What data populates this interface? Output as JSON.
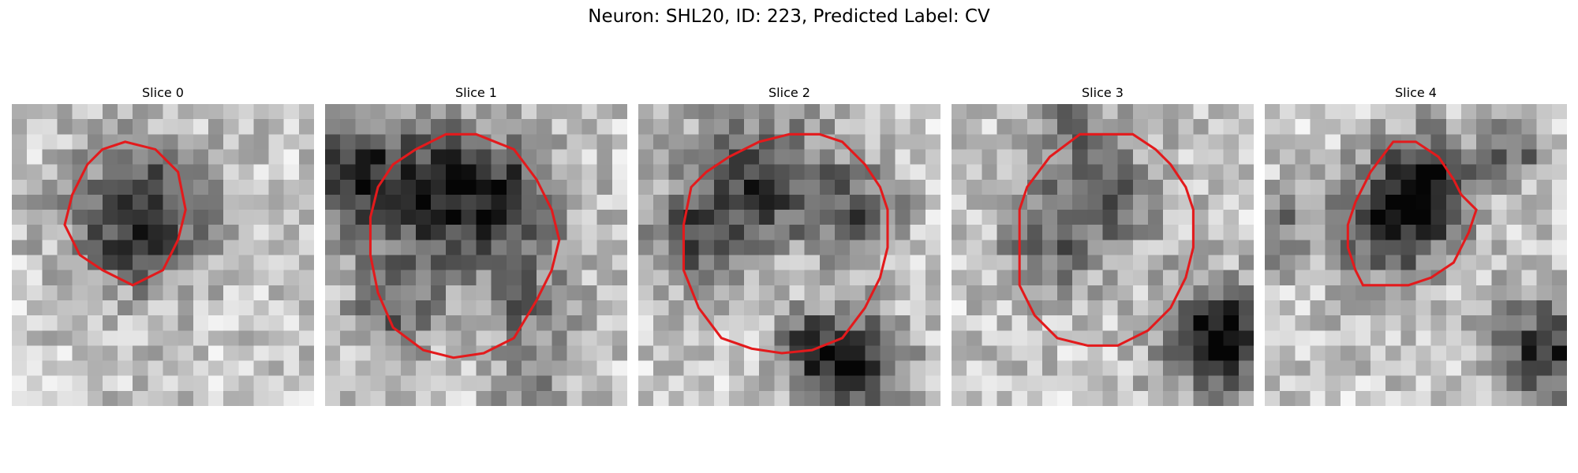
{
  "figure": {
    "title": "Neuron: SHL20, ID: 223, Predicted Label: CV",
    "contour_color": "#e31a1c",
    "panels": [
      {
        "title": "Slice 0",
        "seed": 11,
        "contour": [
          [
            7.5,
            2.5
          ],
          [
            9.5,
            3.0
          ],
          [
            11.0,
            4.5
          ],
          [
            11.5,
            7.0
          ],
          [
            11.0,
            9.0
          ],
          [
            10.0,
            11.0
          ],
          [
            8.0,
            12.0
          ],
          [
            6.0,
            11.0
          ],
          [
            4.5,
            10.0
          ],
          [
            3.5,
            8.0
          ],
          [
            4.0,
            6.0
          ],
          [
            5.0,
            4.0
          ],
          [
            6.0,
            3.0
          ]
        ],
        "dark_blobs": [
          {
            "cx": 8.5,
            "cy": 7.5,
            "r": 4.5,
            "s": 0.65
          }
        ]
      },
      {
        "title": "Slice 1",
        "seed": 23,
        "contour": [
          [
            6.0,
            3.0
          ],
          [
            8.0,
            2.0
          ],
          [
            10.0,
            2.0
          ],
          [
            12.5,
            3.0
          ],
          [
            14.0,
            5.0
          ],
          [
            15.0,
            7.0
          ],
          [
            15.5,
            9.0
          ],
          [
            15.0,
            11.0
          ],
          [
            14.0,
            13.0
          ],
          [
            12.5,
            15.5
          ],
          [
            10.5,
            16.5
          ],
          [
            8.5,
            16.8
          ],
          [
            6.5,
            16.3
          ],
          [
            4.5,
            14.8
          ],
          [
            3.5,
            12.5
          ],
          [
            3.0,
            10.0
          ],
          [
            3.0,
            7.5
          ],
          [
            3.5,
            5.5
          ],
          [
            4.5,
            4.0
          ]
        ],
        "dark_blobs": [
          {
            "cx": 7.0,
            "cy": 6.0,
            "r": 5.0,
            "s": 0.6
          },
          {
            "cx": 1.5,
            "cy": 4.5,
            "r": 3.5,
            "s": 0.4
          },
          {
            "cx": 12.5,
            "cy": 6.5,
            "r": 3.5,
            "s": 0.45
          },
          {
            "cx": 4.5,
            "cy": 13.5,
            "r": 3.0,
            "s": 0.35
          },
          {
            "cx": 13.5,
            "cy": 13.5,
            "r": 3.0,
            "s": 0.35
          },
          {
            "cx": 13.5,
            "cy": 19.0,
            "r": 2.0,
            "s": 0.35
          }
        ]
      },
      {
        "title": "Slice 2",
        "seed": 37,
        "contour": [
          [
            6.0,
            3.5
          ],
          [
            8.0,
            2.5
          ],
          [
            10.0,
            2.0
          ],
          [
            12.0,
            2.0
          ],
          [
            13.5,
            2.5
          ],
          [
            15.0,
            4.0
          ],
          [
            16.0,
            5.5
          ],
          [
            16.5,
            7.0
          ],
          [
            16.5,
            9.5
          ],
          [
            16.0,
            11.5
          ],
          [
            15.0,
            13.5
          ],
          [
            13.5,
            15.5
          ],
          [
            11.5,
            16.3
          ],
          [
            9.5,
            16.5
          ],
          [
            7.5,
            16.2
          ],
          [
            5.5,
            15.5
          ],
          [
            4.0,
            13.5
          ],
          [
            3.0,
            11.0
          ],
          [
            3.0,
            8.0
          ],
          [
            3.5,
            5.5
          ],
          [
            4.5,
            4.5
          ]
        ],
        "dark_blobs": [
          {
            "cx": 8.0,
            "cy": 5.0,
            "r": 4.5,
            "s": 0.55
          },
          {
            "cx": 3.5,
            "cy": 9.0,
            "r": 3.0,
            "s": 0.4
          },
          {
            "cx": 14.5,
            "cy": 7.0,
            "r": 3.0,
            "s": 0.4
          },
          {
            "cx": 14.0,
            "cy": 17.5,
            "r": 3.5,
            "s": 0.7
          },
          {
            "cx": 11.0,
            "cy": 15.5,
            "r": 2.0,
            "s": 0.3
          }
        ]
      },
      {
        "title": "Slice 3",
        "seed": 53,
        "contour": [
          [
            6.5,
            3.5
          ],
          [
            8.5,
            2.0
          ],
          [
            10.5,
            2.0
          ],
          [
            12.0,
            2.0
          ],
          [
            13.5,
            3.0
          ],
          [
            14.5,
            4.0
          ],
          [
            15.5,
            5.5
          ],
          [
            16.0,
            7.0
          ],
          [
            16.0,
            9.5
          ],
          [
            15.5,
            11.5
          ],
          [
            14.5,
            13.5
          ],
          [
            13.0,
            15.0
          ],
          [
            11.0,
            16.0
          ],
          [
            9.0,
            16.0
          ],
          [
            7.0,
            15.5
          ],
          [
            5.5,
            14.0
          ],
          [
            4.5,
            12.0
          ],
          [
            4.5,
            9.5
          ],
          [
            4.5,
            7.0
          ],
          [
            5.0,
            5.5
          ]
        ],
        "dark_blobs": [
          {
            "cx": 9.5,
            "cy": 6.0,
            "r": 4.0,
            "s": 0.45
          },
          {
            "cx": 6.0,
            "cy": 10.0,
            "r": 3.0,
            "s": 0.3
          },
          {
            "cx": 17.5,
            "cy": 15.5,
            "r": 3.5,
            "s": 0.75
          },
          {
            "cx": 8.0,
            "cy": 0.8,
            "r": 2.0,
            "s": 0.3
          }
        ]
      },
      {
        "title": "Slice 4",
        "seed": 71,
        "contour": [
          [
            8.5,
            2.5
          ],
          [
            10.0,
            2.5
          ],
          [
            11.5,
            3.5
          ],
          [
            12.5,
            5.0
          ],
          [
            13.0,
            6.0
          ],
          [
            14.0,
            7.0
          ],
          [
            13.5,
            8.5
          ],
          [
            12.5,
            10.5
          ],
          [
            11.0,
            11.5
          ],
          [
            9.5,
            12.0
          ],
          [
            8.0,
            12.0
          ],
          [
            6.5,
            12.0
          ],
          [
            6.0,
            11.0
          ],
          [
            5.5,
            9.5
          ],
          [
            5.5,
            8.0
          ],
          [
            6.0,
            6.5
          ],
          [
            7.0,
            4.5
          ]
        ],
        "dark_blobs": [
          {
            "cx": 10.5,
            "cy": 5.5,
            "r": 3.5,
            "s": 0.65
          },
          {
            "cx": 8.0,
            "cy": 8.5,
            "r": 3.5,
            "s": 0.45
          },
          {
            "cx": 18.5,
            "cy": 16.5,
            "r": 3.5,
            "s": 0.6
          },
          {
            "cx": 16.5,
            "cy": 3.0,
            "r": 2.0,
            "s": 0.4
          },
          {
            "cx": 0.5,
            "cy": 8.0,
            "r": 2.5,
            "s": 0.35
          }
        ]
      }
    ]
  }
}
